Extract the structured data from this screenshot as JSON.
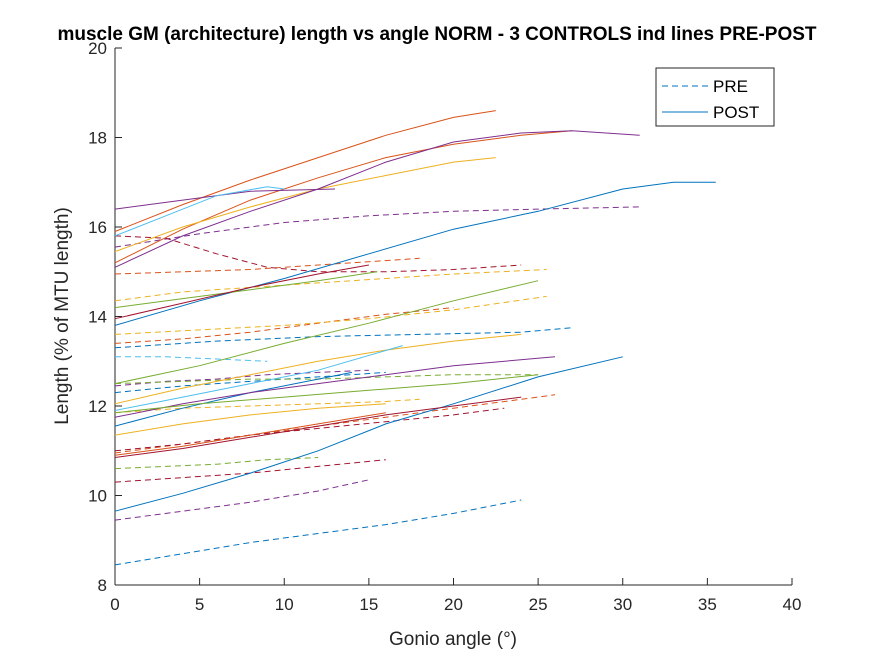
{
  "chart_data": {
    "type": "line",
    "title": "muscle GM (architecture) length vs angle NORM - 3 CONTROLS ind lines PRE-POST",
    "xlabel": "Gonio angle (°)",
    "ylabel": "Length (% of MTU length)",
    "xlim": [
      0,
      40
    ],
    "ylim": [
      8,
      20
    ],
    "xticks": [
      0,
      5,
      10,
      15,
      20,
      25,
      30,
      35,
      40
    ],
    "yticks": [
      8,
      10,
      12,
      14,
      16,
      18,
      20
    ],
    "grid": false,
    "legend": {
      "placement": "top-right",
      "entries": [
        {
          "label": "PRE",
          "style": "dashed",
          "color": "#0072BD"
        },
        {
          "label": "POST",
          "style": "solid",
          "color": "#0072BD"
        }
      ]
    },
    "series": [
      {
        "style": "dashed",
        "color": "#0072BD",
        "x": [
          0,
          4,
          8,
          12,
          16,
          20,
          24
        ],
        "y": [
          8.45,
          8.7,
          8.95,
          9.15,
          9.35,
          9.6,
          9.9
        ]
      },
      {
        "style": "dashed",
        "color": "#0072BD",
        "x": [
          0,
          6,
          12,
          18,
          24,
          27
        ],
        "y": [
          13.3,
          13.45,
          13.55,
          13.6,
          13.65,
          13.75
        ]
      },
      {
        "style": "dashed",
        "color": "#0072BD",
        "x": [
          0,
          4,
          8,
          12,
          16
        ],
        "y": [
          12.3,
          12.45,
          12.55,
          12.65,
          12.75
        ]
      },
      {
        "style": "dashed",
        "color": "#D95319",
        "x": [
          0,
          4,
          8,
          12,
          16,
          20,
          24,
          26
        ],
        "y": [
          10.95,
          11.15,
          11.35,
          11.55,
          11.75,
          11.95,
          12.15,
          12.25
        ]
      },
      {
        "style": "dashed",
        "color": "#D95319",
        "x": [
          0,
          4,
          8,
          12,
          16,
          18
        ],
        "y": [
          14.95,
          15.0,
          15.05,
          15.15,
          15.25,
          15.3
        ]
      },
      {
        "style": "dashed",
        "color": "#D95319",
        "x": [
          0,
          4,
          8,
          12,
          16,
          20
        ],
        "y": [
          13.4,
          13.5,
          13.65,
          13.85,
          14.05,
          14.2
        ]
      },
      {
        "style": "dashed",
        "color": "#EDB120",
        "x": [
          0,
          4,
          8,
          12,
          16,
          20,
          25.5
        ],
        "y": [
          14.35,
          14.55,
          14.65,
          14.75,
          14.85,
          14.95,
          15.05
        ]
      },
      {
        "style": "dashed",
        "color": "#EDB120",
        "x": [
          0,
          5,
          10,
          15,
          20,
          25.5
        ],
        "y": [
          13.6,
          13.7,
          13.8,
          13.95,
          14.15,
          14.45
        ]
      },
      {
        "style": "dashed",
        "color": "#EDB120",
        "x": [
          0,
          4,
          8,
          12,
          16,
          18
        ],
        "y": [
          11.85,
          11.95,
          12.0,
          12.05,
          12.1,
          12.15
        ]
      },
      {
        "style": "dashed",
        "color": "#7E2F8E",
        "x": [
          0,
          5,
          10,
          15,
          20,
          25,
          31
        ],
        "y": [
          15.55,
          15.85,
          16.1,
          16.25,
          16.35,
          16.4,
          16.45
        ]
      },
      {
        "style": "dashed",
        "color": "#7E2F8E",
        "x": [
          0,
          4,
          8,
          12,
          15
        ],
        "y": [
          9.45,
          9.65,
          9.85,
          10.1,
          10.35
        ]
      },
      {
        "style": "dashed",
        "color": "#7E2F8E",
        "x": [
          0,
          3,
          6,
          9,
          12,
          15
        ],
        "y": [
          12.45,
          12.55,
          12.6,
          12.7,
          12.75,
          12.8
        ]
      },
      {
        "style": "dashed",
        "color": "#77AC30",
        "x": [
          0,
          3,
          6,
          9,
          12
        ],
        "y": [
          10.6,
          10.65,
          10.7,
          10.8,
          10.85
        ]
      },
      {
        "style": "dashed",
        "color": "#77AC30",
        "x": [
          0,
          4,
          8,
          12,
          16,
          20,
          25
        ],
        "y": [
          12.5,
          12.55,
          12.6,
          12.6,
          12.65,
          12.7,
          12.7
        ]
      },
      {
        "style": "dashed",
        "color": "#4DBEEE",
        "x": [
          0,
          3,
          6,
          9
        ],
        "y": [
          13.1,
          13.1,
          13.05,
          13.0
        ]
      },
      {
        "style": "dashed",
        "color": "#A2142F",
        "x": [
          0,
          4,
          8,
          12,
          16
        ],
        "y": [
          10.3,
          10.4,
          10.5,
          10.65,
          10.8
        ]
      },
      {
        "style": "dashed",
        "color": "#A2142F",
        "x": [
          0,
          3,
          6,
          9,
          12,
          16,
          20,
          24
        ],
        "y": [
          15.8,
          15.75,
          15.4,
          15.1,
          15.0,
          15.0,
          15.05,
          15.15
        ]
      },
      {
        "style": "dashed",
        "color": "#A2142F",
        "x": [
          0,
          4,
          8,
          12,
          16,
          20,
          23
        ],
        "y": [
          11.0,
          11.15,
          11.35,
          11.5,
          11.65,
          11.8,
          11.95
        ]
      },
      {
        "style": "solid",
        "color": "#0072BD",
        "x": [
          0,
          5,
          10,
          15,
          20,
          25,
          30,
          33,
          35.5
        ],
        "y": [
          13.8,
          14.35,
          14.85,
          15.4,
          15.95,
          16.35,
          16.85,
          17.0,
          17.0
        ]
      },
      {
        "style": "solid",
        "color": "#0072BD",
        "x": [
          0,
          4,
          8,
          12,
          16,
          20,
          25,
          30
        ],
        "y": [
          9.65,
          10.05,
          10.5,
          11.0,
          11.6,
          12.05,
          12.65,
          13.1
        ]
      },
      {
        "style": "solid",
        "color": "#0072BD",
        "x": [
          0,
          4,
          8,
          12,
          14
        ],
        "y": [
          11.55,
          11.95,
          12.3,
          12.6,
          12.75
        ]
      },
      {
        "style": "solid",
        "color": "#D95319",
        "x": [
          0,
          4,
          8,
          12,
          16,
          20,
          22.5
        ],
        "y": [
          15.9,
          16.5,
          17.05,
          17.55,
          18.05,
          18.45,
          18.6
        ]
      },
      {
        "style": "solid",
        "color": "#D95319",
        "x": [
          0,
          4,
          8,
          12,
          16,
          20,
          24,
          27
        ],
        "y": [
          15.2,
          15.95,
          16.6,
          17.1,
          17.55,
          17.85,
          18.05,
          18.15
        ]
      },
      {
        "style": "solid",
        "color": "#D95319",
        "x": [
          0,
          4,
          8,
          12,
          16
        ],
        "y": [
          10.9,
          11.1,
          11.35,
          11.6,
          11.85
        ]
      },
      {
        "style": "solid",
        "color": "#EDB120",
        "x": [
          0,
          4,
          8,
          12,
          16,
          20,
          22.5
        ],
        "y": [
          15.45,
          16.0,
          16.45,
          16.85,
          17.15,
          17.45,
          17.55
        ]
      },
      {
        "style": "solid",
        "color": "#EDB120",
        "x": [
          0,
          4,
          8,
          12,
          16,
          20,
          24
        ],
        "y": [
          12.05,
          12.4,
          12.7,
          13.0,
          13.25,
          13.45,
          13.6
        ]
      },
      {
        "style": "solid",
        "color": "#EDB120",
        "x": [
          0,
          4,
          8,
          12,
          16
        ],
        "y": [
          11.35,
          11.6,
          11.8,
          11.95,
          12.05
        ]
      },
      {
        "style": "solid",
        "color": "#7E2F8E",
        "x": [
          0,
          4,
          8,
          12,
          16,
          20,
          24,
          27,
          31
        ],
        "y": [
          15.1,
          15.8,
          16.35,
          16.85,
          17.45,
          17.9,
          18.1,
          18.15,
          18.05
        ]
      },
      {
        "style": "solid",
        "color": "#7E2F8E",
        "x": [
          0,
          4,
          8,
          12,
          16,
          20,
          26
        ],
        "y": [
          11.75,
          12.05,
          12.3,
          12.5,
          12.7,
          12.9,
          13.1
        ]
      },
      {
        "style": "solid",
        "color": "#7E2F8E",
        "x": [
          0,
          4,
          8,
          13
        ],
        "y": [
          16.4,
          16.6,
          16.8,
          16.85
        ]
      },
      {
        "style": "solid",
        "color": "#77AC30",
        "x": [
          0,
          4,
          8,
          12,
          15.5
        ],
        "y": [
          14.2,
          14.4,
          14.6,
          14.8,
          15.0
        ]
      },
      {
        "style": "solid",
        "color": "#77AC30",
        "x": [
          0,
          5,
          10,
          15,
          20,
          25
        ],
        "y": [
          12.5,
          12.9,
          13.4,
          13.85,
          14.35,
          14.8
        ]
      },
      {
        "style": "solid",
        "color": "#77AC30",
        "x": [
          0,
          5,
          10,
          15,
          20,
          25
        ],
        "y": [
          11.85,
          12.05,
          12.2,
          12.35,
          12.5,
          12.7
        ]
      },
      {
        "style": "solid",
        "color": "#4DBEEE",
        "x": [
          0,
          3,
          6,
          9,
          10
        ],
        "y": [
          15.8,
          16.25,
          16.7,
          16.9,
          16.85
        ]
      },
      {
        "style": "solid",
        "color": "#4DBEEE",
        "x": [
          0,
          4,
          8,
          12,
          17
        ],
        "y": [
          11.9,
          12.2,
          12.5,
          12.8,
          13.35
        ]
      },
      {
        "style": "solid",
        "color": "#A2142F",
        "x": [
          0,
          4,
          8,
          12,
          16,
          20,
          24
        ],
        "y": [
          10.85,
          11.05,
          11.3,
          11.55,
          11.8,
          12.0,
          12.2
        ]
      },
      {
        "style": "solid",
        "color": "#A2142F",
        "x": [
          0,
          4,
          8,
          12,
          15
        ],
        "y": [
          13.95,
          14.3,
          14.65,
          14.95,
          15.15
        ]
      }
    ]
  }
}
